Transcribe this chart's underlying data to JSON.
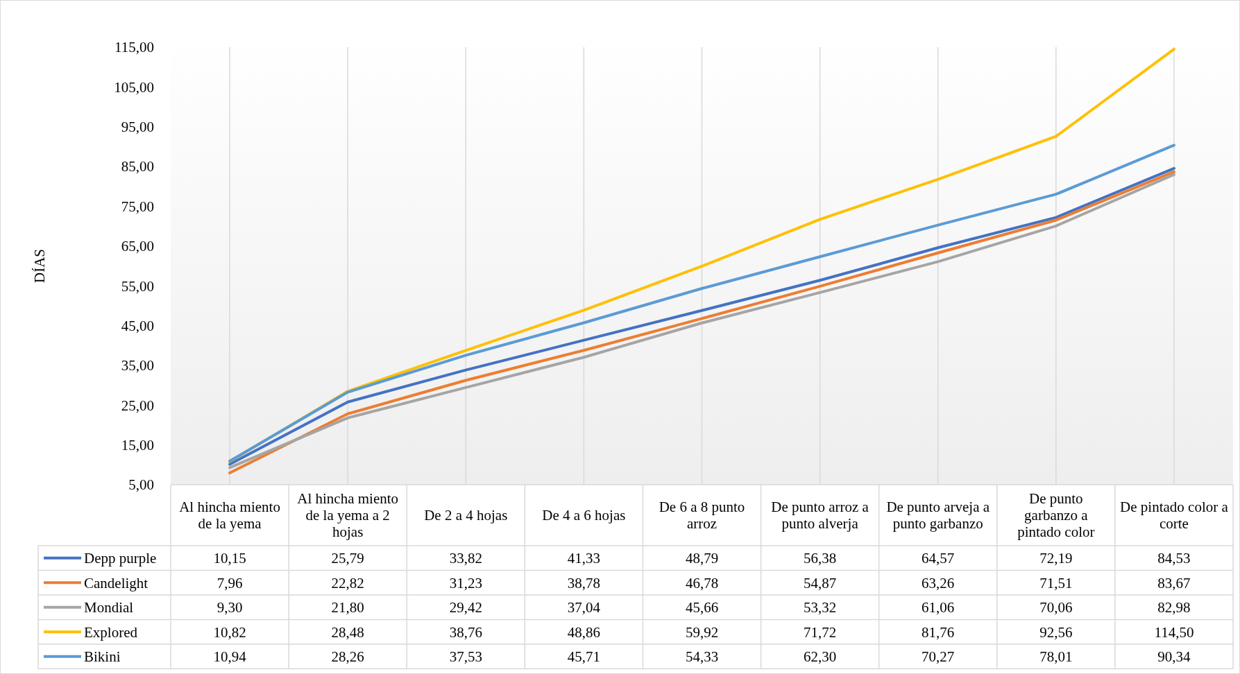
{
  "chart_data": {
    "type": "line",
    "ylabel": "DÍAS",
    "categories": [
      "Al hincha miento de la yema",
      "Al hincha miento de la yema a 2 hojas",
      "De 2 a 4 hojas",
      "De 4 a 6 hojas",
      "De 6 a 8 punto arroz",
      "De punto arroz a punto alverja",
      "De punto arveja a punto garbanzo",
      "De punto garbanzo a pintado color",
      "De pintado color a corte"
    ],
    "series": [
      {
        "name": "Depp purple",
        "color": "#4472c4",
        "values": [
          10.15,
          25.79,
          33.82,
          41.33,
          48.79,
          56.38,
          64.57,
          72.19,
          84.53
        ],
        "value_labels": [
          "10,15",
          "25,79",
          "33,82",
          "41,33",
          "48,79",
          "56,38",
          "64,57",
          "72,19",
          "84,53"
        ]
      },
      {
        "name": "Candelight",
        "color": "#ed7d31",
        "values": [
          7.96,
          22.82,
          31.23,
          38.78,
          46.78,
          54.87,
          63.26,
          71.51,
          83.67
        ],
        "value_labels": [
          "7,96",
          "22,82",
          "31,23",
          "38,78",
          "46,78",
          "54,87",
          "63,26",
          "71,51",
          "83,67"
        ]
      },
      {
        "name": "Mondial",
        "color": "#a5a5a5",
        "values": [
          9.3,
          21.8,
          29.42,
          37.04,
          45.66,
          53.32,
          61.06,
          70.06,
          82.98
        ],
        "value_labels": [
          "9,30",
          "21,80",
          "29,42",
          "37,04",
          "45,66",
          "53,32",
          "61,06",
          "70,06",
          "82,98"
        ]
      },
      {
        "name": "Explored",
        "color": "#ffc000",
        "values": [
          10.82,
          28.48,
          38.76,
          48.86,
          59.92,
          71.72,
          81.76,
          92.56,
          114.5
        ],
        "value_labels": [
          "10,82",
          "28,48",
          "38,76",
          "48,86",
          "59,92",
          "71,72",
          "81,76",
          "92,56",
          "114,50"
        ]
      },
      {
        "name": "Bikini",
        "color": "#5b9bd5",
        "values": [
          10.94,
          28.26,
          37.53,
          45.71,
          54.33,
          62.3,
          70.27,
          78.01,
          90.34
        ],
        "value_labels": [
          "10,94",
          "28,26",
          "37,53",
          "45,71",
          "54,33",
          "62,30",
          "70,27",
          "78,01",
          "90,34"
        ]
      }
    ],
    "ylim": [
      5,
      115
    ],
    "yticks": [
      {
        "value": 5,
        "label": "5,00"
      },
      {
        "value": 15,
        "label": "15,00"
      },
      {
        "value": 25,
        "label": "25,00"
      },
      {
        "value": 35,
        "label": "35,00"
      },
      {
        "value": 45,
        "label": "45,00"
      },
      {
        "value": 55,
        "label": "55,00"
      },
      {
        "value": 65,
        "label": "65,00"
      },
      {
        "value": 75,
        "label": "75,00"
      },
      {
        "value": 85,
        "label": "85,00"
      },
      {
        "value": 95,
        "label": "95,00"
      },
      {
        "value": 105,
        "label": "105,00"
      },
      {
        "value": 115,
        "label": "115,00"
      }
    ],
    "grid": "x",
    "legend": "bottom",
    "marker": "none",
    "line_style": "solid"
  }
}
